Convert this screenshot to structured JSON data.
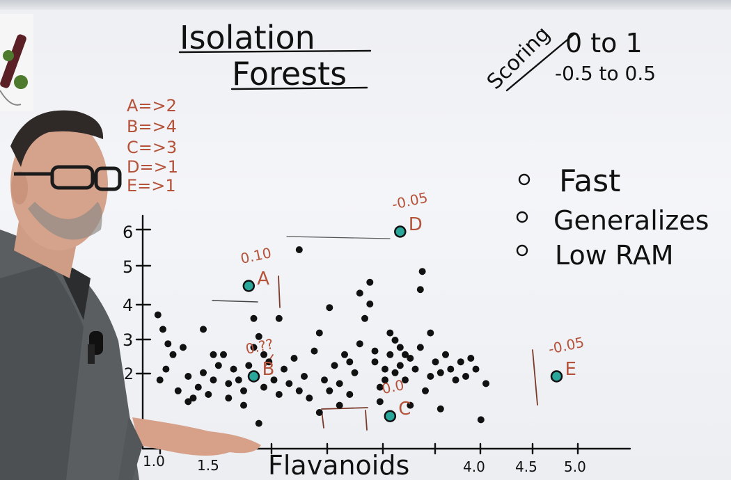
{
  "title_line1": "Isolation",
  "title_line2": "Forests",
  "scoring": {
    "label": "Scoring",
    "range1": "0 to 1",
    "range2": "-0.5 to 0.5"
  },
  "depths": [
    "A=>2",
    "B=>4",
    "C=>3",
    "D=>1",
    "E=>1"
  ],
  "bullets": [
    "Fast",
    "Generalizes",
    "Low RAM"
  ],
  "chart_data": {
    "type": "scatter",
    "xlabel": "Flavanoids",
    "x_ticks": [
      "1.0",
      "1.5",
      "4.0",
      "4.5",
      "5.0"
    ],
    "y_ticks": [
      "2",
      "3",
      "4",
      "5",
      "6"
    ],
    "highlighted": [
      {
        "label": "A",
        "x": 1.9,
        "y": 4.5,
        "score": "0.10"
      },
      {
        "label": "B",
        "x": 1.95,
        "y": 2.0,
        "score": "0.??"
      },
      {
        "label": "C",
        "x": 3.3,
        "y": 0.9,
        "score": "0.0"
      },
      {
        "label": "D",
        "x": 3.4,
        "y": 6.0,
        "score": "-0.05"
      },
      {
        "label": "E",
        "x": 4.95,
        "y": 2.0,
        "score": "-0.05"
      }
    ],
    "points": [
      [
        1.0,
        3.7
      ],
      [
        1.05,
        3.3
      ],
      [
        1.1,
        2.9
      ],
      [
        1.15,
        2.6
      ],
      [
        1.08,
        2.2
      ],
      [
        1.02,
        1.9
      ],
      [
        1.2,
        1.6
      ],
      [
        1.3,
        2.0
      ],
      [
        1.25,
        2.8
      ],
      [
        1.35,
        1.4
      ],
      [
        1.4,
        1.7
      ],
      [
        1.45,
        2.1
      ],
      [
        1.5,
        1.5
      ],
      [
        1.55,
        1.9
      ],
      [
        1.6,
        2.3
      ],
      [
        1.65,
        2.6
      ],
      [
        1.7,
        1.8
      ],
      [
        1.75,
        2.2
      ],
      [
        1.8,
        1.9
      ],
      [
        1.85,
        1.6
      ],
      [
        1.9,
        2.3
      ],
      [
        1.95,
        2.8
      ],
      [
        2.0,
        3.1
      ],
      [
        2.05,
        1.7
      ],
      [
        2.1,
        2.4
      ],
      [
        2.15,
        1.9
      ],
      [
        2.2,
        1.5
      ],
      [
        2.25,
        2.2
      ],
      [
        2.3,
        1.8
      ],
      [
        2.35,
        2.5
      ],
      [
        2.4,
        1.6
      ],
      [
        2.45,
        2.0
      ],
      [
        2.5,
        1.4
      ],
      [
        2.55,
        2.7
      ],
      [
        2.6,
        3.2
      ],
      [
        2.65,
        1.9
      ],
      [
        2.7,
        1.6
      ],
      [
        2.75,
        2.3
      ],
      [
        2.8,
        1.8
      ],
      [
        2.85,
        2.6
      ],
      [
        2.9,
        1.5
      ],
      [
        2.95,
        2.1
      ],
      [
        3.0,
        2.9
      ],
      [
        3.05,
        3.6
      ],
      [
        3.1,
        4.0
      ],
      [
        3.15,
        2.4
      ],
      [
        3.2,
        1.7
      ],
      [
        3.25,
        2.2
      ],
      [
        3.3,
        2.6
      ],
      [
        3.35,
        3.0
      ],
      [
        3.4,
        2.3
      ],
      [
        3.45,
        1.9
      ],
      [
        3.5,
        2.5
      ],
      [
        3.55,
        2.2
      ],
      [
        3.6,
        2.8
      ],
      [
        3.65,
        1.6
      ],
      [
        3.7,
        3.2
      ],
      [
        3.75,
        2.4
      ],
      [
        3.8,
        2.1
      ],
      [
        3.85,
        2.6
      ],
      [
        3.9,
        2.2
      ],
      [
        3.95,
        1.9
      ],
      [
        4.0,
        2.4
      ],
      [
        4.05,
        2.0
      ],
      [
        4.1,
        2.5
      ],
      [
        4.15,
        2.2
      ],
      [
        4.25,
        1.8
      ],
      [
        3.6,
        4.4
      ],
      [
        3.62,
        4.9
      ],
      [
        2.4,
        5.5
      ],
      [
        1.95,
        3.6
      ],
      [
        2.05,
        2.6
      ],
      [
        1.45,
        3.3
      ],
      [
        1.55,
        2.6
      ],
      [
        1.7,
        1.4
      ],
      [
        2.2,
        3.6
      ],
      [
        2.7,
        3.9
      ],
      [
        3.0,
        4.3
      ],
      [
        3.1,
        4.6
      ],
      [
        3.3,
        3.2
      ],
      [
        3.2,
        1.3
      ],
      [
        3.5,
        1.2
      ],
      [
        3.8,
        1.1
      ],
      [
        4.2,
        0.8
      ],
      [
        2.0,
        0.7
      ],
      [
        2.6,
        1.0
      ],
      [
        1.85,
        1.2
      ],
      [
        1.3,
        1.3
      ],
      [
        2.8,
        1.2
      ],
      [
        3.45,
        2.6
      ],
      [
        3.35,
        2.1
      ],
      [
        3.15,
        2.7
      ],
      [
        3.25,
        1.9
      ],
      [
        3.7,
        2.0
      ],
      [
        3.4,
        2.8
      ],
      [
        2.9,
        2.4
      ]
    ]
  }
}
